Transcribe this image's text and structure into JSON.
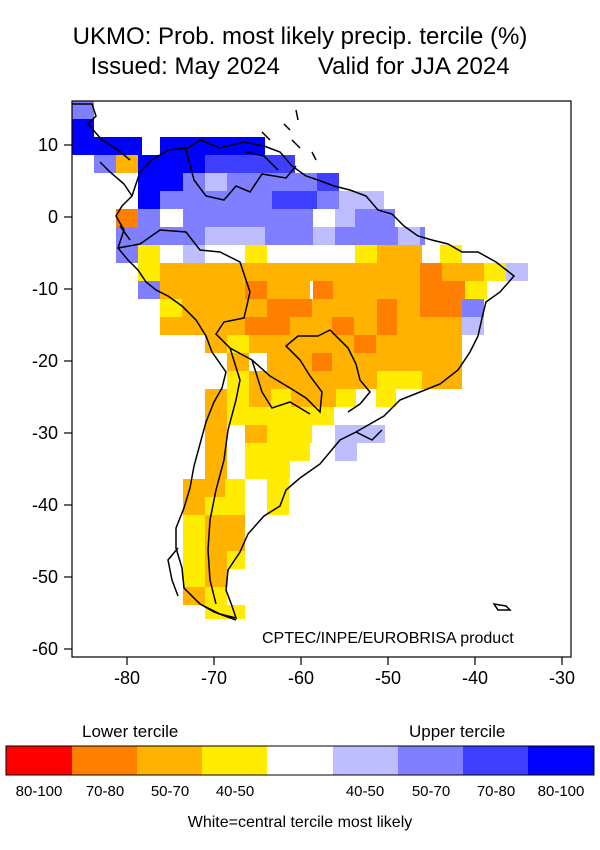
{
  "title": {
    "line1": "UKMO: Prob. most likely precip. tercile (%)",
    "issued": "Issued: May 2024",
    "valid": "Valid for JJA 2024"
  },
  "map": {
    "credit": "CPTEC/INPE/EUROBRISA product",
    "lon_ticks": [
      "-80",
      "-70",
      "-60",
      "-50",
      "-40",
      "-30"
    ],
    "lat_ticks": [
      "10",
      "0",
      "-10",
      "-20",
      "-30",
      "-40",
      "-50",
      "-60"
    ],
    "lon_range": [
      -87,
      -28
    ],
    "lat_range": [
      -62,
      16
    ]
  },
  "legend": {
    "lower_label": "Lower tercile",
    "upper_label": "Upper tercile",
    "footnote": "White=central tercile most likely",
    "bins": [
      {
        "label": "80-100",
        "color": "#ff0000"
      },
      {
        "label": "70-80",
        "color": "#ff7f00"
      },
      {
        "label": "50-70",
        "color": "#ffb200"
      },
      {
        "label": "40-50",
        "color": "#ffec00"
      },
      {
        "label": "",
        "color": "#ffffff"
      },
      {
        "label": "40-50",
        "color": "#bebeff"
      },
      {
        "label": "50-70",
        "color": "#7f7fff"
      },
      {
        "label": "70-80",
        "color": "#3f3fff"
      },
      {
        "label": "80-100",
        "color": "#0000ff"
      }
    ]
  }
}
